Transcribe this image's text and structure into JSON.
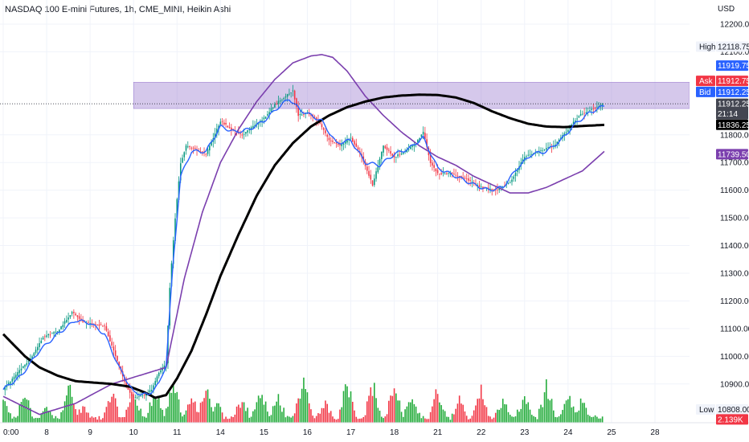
{
  "title": "NASDAQ 100 E-mini Futures, 1h, CME_MINI, Heikin Ashi",
  "currency_label": "USD",
  "colors": {
    "up": "#089981",
    "down": "#f23645",
    "volume_up": "#22ab3a",
    "volume_down": "#f23645",
    "blue_line": "#2962ff",
    "purple_line": "#7b3fae",
    "black_line": "#000000",
    "zone": "rgba(149,117,205,0.40)",
    "zone_border": "#9575cd"
  },
  "chart_data": {
    "type": "candlestick",
    "ylim": [
      10760,
      12200
    ],
    "y_ticks": [
      "12200.00",
      "12100.00",
      "11800.00",
      "11700.00",
      "11600.00",
      "11500.00",
      "11400.00",
      "11300.00",
      "11200.00",
      "11100.00",
      "11000.00",
      "10900.00"
    ],
    "y_tick_values": [
      12200,
      12100,
      11800,
      11700,
      11600,
      11500,
      11400,
      11300,
      11200,
      11100,
      11000,
      10900
    ],
    "x_ticks": [
      "0:00",
      "8",
      "9",
      "10",
      "11",
      "14",
      "15",
      "16",
      "17",
      "18",
      "21",
      "22",
      "23",
      "24",
      "25",
      "28"
    ],
    "x_tick_positions": [
      0,
      24,
      48,
      72,
      96,
      120,
      144,
      168,
      192,
      216,
      240,
      264,
      288,
      312,
      336,
      360
    ],
    "bars_total": 332,
    "x_max": 372,
    "price_path_keypoints": [
      [
        0,
        10880
      ],
      [
        8,
        10940
      ],
      [
        16,
        11000
      ],
      [
        22,
        11070
      ],
      [
        30,
        11090
      ],
      [
        38,
        11160
      ],
      [
        44,
        11125
      ],
      [
        50,
        11115
      ],
      [
        56,
        11110
      ],
      [
        62,
        11000
      ],
      [
        68,
        10890
      ],
      [
        72,
        10850
      ],
      [
        78,
        10860
      ],
      [
        82,
        10880
      ],
      [
        86,
        10940
      ],
      [
        90,
        10975
      ],
      [
        92,
        11250
      ],
      [
        95,
        11500
      ],
      [
        98,
        11700
      ],
      [
        101,
        11760
      ],
      [
        105,
        11750
      ],
      [
        112,
        11730
      ],
      [
        120,
        11850
      ],
      [
        126,
        11820
      ],
      [
        132,
        11800
      ],
      [
        138,
        11830
      ],
      [
        144,
        11860
      ],
      [
        150,
        11910
      ],
      [
        156,
        11940
      ],
      [
        160,
        11960
      ],
      [
        163,
        11870
      ],
      [
        168,
        11880
      ],
      [
        174,
        11850
      ],
      [
        180,
        11780
      ],
      [
        186,
        11760
      ],
      [
        192,
        11790
      ],
      [
        198,
        11720
      ],
      [
        204,
        11620
      ],
      [
        210,
        11760
      ],
      [
        216,
        11720
      ],
      [
        222,
        11740
      ],
      [
        228,
        11770
      ],
      [
        232,
        11810
      ],
      [
        236,
        11700
      ],
      [
        240,
        11660
      ],
      [
        248,
        11660
      ],
      [
        256,
        11640
      ],
      [
        264,
        11610
      ],
      [
        272,
        11600
      ],
      [
        280,
        11630
      ],
      [
        288,
        11720
      ],
      [
        296,
        11740
      ],
      [
        304,
        11760
      ],
      [
        312,
        11820
      ],
      [
        318,
        11870
      ],
      [
        324,
        11890
      ],
      [
        332,
        11912
      ]
    ],
    "blue_line_keypoints": [
      [
        0,
        10880
      ],
      [
        10,
        10930
      ],
      [
        20,
        11020
      ],
      [
        30,
        11080
      ],
      [
        40,
        11130
      ],
      [
        48,
        11120
      ],
      [
        56,
        11080
      ],
      [
        64,
        10960
      ],
      [
        72,
        10870
      ],
      [
        80,
        10860
      ],
      [
        86,
        10900
      ],
      [
        90,
        10970
      ],
      [
        94,
        11350
      ],
      [
        98,
        11650
      ],
      [
        104,
        11740
      ],
      [
        112,
        11740
      ],
      [
        120,
        11830
      ],
      [
        128,
        11810
      ],
      [
        136,
        11820
      ],
      [
        144,
        11850
      ],
      [
        152,
        11900
      ],
      [
        158,
        11930
      ],
      [
        164,
        11890
      ],
      [
        170,
        11870
      ],
      [
        176,
        11850
      ],
      [
        184,
        11770
      ],
      [
        192,
        11780
      ],
      [
        200,
        11700
      ],
      [
        208,
        11690
      ],
      [
        216,
        11730
      ],
      [
        224,
        11750
      ],
      [
        232,
        11790
      ],
      [
        240,
        11680
      ],
      [
        250,
        11650
      ],
      [
        260,
        11620
      ],
      [
        268,
        11600
      ],
      [
        276,
        11610
      ],
      [
        284,
        11680
      ],
      [
        292,
        11730
      ],
      [
        300,
        11740
      ],
      [
        308,
        11780
      ],
      [
        316,
        11840
      ],
      [
        324,
        11880
      ],
      [
        332,
        11905
      ]
    ],
    "purple_line_keypoints": [
      [
        0,
        10855
      ],
      [
        20,
        10790
      ],
      [
        40,
        10830
      ],
      [
        60,
        10900
      ],
      [
        80,
        10940
      ],
      [
        90,
        10960
      ],
      [
        100,
        11280
      ],
      [
        110,
        11520
      ],
      [
        120,
        11700
      ],
      [
        130,
        11820
      ],
      [
        140,
        11920
      ],
      [
        150,
        12000
      ],
      [
        160,
        12060
      ],
      [
        170,
        12085
      ],
      [
        176,
        12090
      ],
      [
        182,
        12080
      ],
      [
        190,
        12030
      ],
      [
        200,
        11940
      ],
      [
        210,
        11870
      ],
      [
        220,
        11810
      ],
      [
        230,
        11760
      ],
      [
        240,
        11720
      ],
      [
        250,
        11690
      ],
      [
        260,
        11650
      ],
      [
        270,
        11620
      ],
      [
        280,
        11590
      ],
      [
        290,
        11590
      ],
      [
        300,
        11610
      ],
      [
        310,
        11640
      ],
      [
        320,
        11670
      ],
      [
        332,
        11740
      ]
    ],
    "black_line_keypoints": [
      [
        0,
        11080
      ],
      [
        6,
        11040
      ],
      [
        12,
        11000
      ],
      [
        20,
        10960
      ],
      [
        30,
        10930
      ],
      [
        40,
        10910
      ],
      [
        50,
        10905
      ],
      [
        60,
        10900
      ],
      [
        70,
        10890
      ],
      [
        78,
        10870
      ],
      [
        84,
        10850
      ],
      [
        90,
        10860
      ],
      [
        96,
        10920
      ],
      [
        104,
        11020
      ],
      [
        112,
        11150
      ],
      [
        120,
        11290
      ],
      [
        130,
        11440
      ],
      [
        140,
        11580
      ],
      [
        150,
        11690
      ],
      [
        160,
        11770
      ],
      [
        170,
        11830
      ],
      [
        180,
        11870
      ],
      [
        190,
        11900
      ],
      [
        200,
        11920
      ],
      [
        210,
        11935
      ],
      [
        220,
        11942
      ],
      [
        230,
        11945
      ],
      [
        240,
        11944
      ],
      [
        250,
        11935
      ],
      [
        260,
        11915
      ],
      [
        270,
        11885
      ],
      [
        280,
        11860
      ],
      [
        290,
        11840
      ],
      [
        300,
        11830
      ],
      [
        310,
        11828
      ],
      [
        320,
        11832
      ],
      [
        332,
        11836
      ]
    ],
    "volume_peaks": [
      [
        0,
        0.35
      ],
      [
        12,
        0.45
      ],
      [
        24,
        0.25
      ],
      [
        36,
        0.6
      ],
      [
        44,
        0.25
      ],
      [
        60,
        0.45
      ],
      [
        72,
        0.5
      ],
      [
        84,
        0.55
      ],
      [
        94,
        0.65
      ],
      [
        104,
        0.4
      ],
      [
        112,
        0.55
      ],
      [
        118,
        0.3
      ],
      [
        132,
        0.4
      ],
      [
        142,
        0.5
      ],
      [
        152,
        0.4
      ],
      [
        166,
        0.7
      ],
      [
        178,
        0.35
      ],
      [
        190,
        0.65
      ],
      [
        204,
        0.6
      ],
      [
        216,
        0.55
      ],
      [
        226,
        0.45
      ],
      [
        240,
        0.5
      ],
      [
        252,
        0.4
      ],
      [
        264,
        0.5
      ],
      [
        276,
        0.35
      ],
      [
        288,
        0.45
      ],
      [
        300,
        0.55
      ],
      [
        312,
        0.4
      ],
      [
        320,
        0.35
      ],
      [
        326,
        0.1
      ]
    ],
    "volume_max_label": "2.139K",
    "zone": {
      "y_top": 11990,
      "y_bottom": 11895,
      "x_start": 72
    },
    "current_price_line": 11912.25,
    "price_tags": [
      {
        "label": "High",
        "value": "12118.75",
        "price": 12118.75,
        "style": "plain"
      },
      {
        "label": "",
        "value": "11919.75",
        "price": 12050,
        "style": "blue"
      },
      {
        "label": "Ask",
        "value": "11912.75",
        "price": 11995,
        "style": "red"
      },
      {
        "label": "Bid",
        "value": "11912.25",
        "price": 11955,
        "style": "blue"
      },
      {
        "label": "",
        "value": "11912.25",
        "price": 11912.25,
        "style": "dark",
        "sub": "21:14"
      },
      {
        "label": "",
        "value": "11836.25",
        "price": 11836.25,
        "style": "black"
      },
      {
        "label": "",
        "value": "11739.50",
        "price": 11730,
        "style": "purple"
      },
      {
        "label": "Low",
        "value": "10808.00",
        "price": 10808,
        "style": "plain"
      },
      {
        "label": "",
        "value": "2.139K",
        "price": 10772,
        "style": "red"
      }
    ]
  }
}
